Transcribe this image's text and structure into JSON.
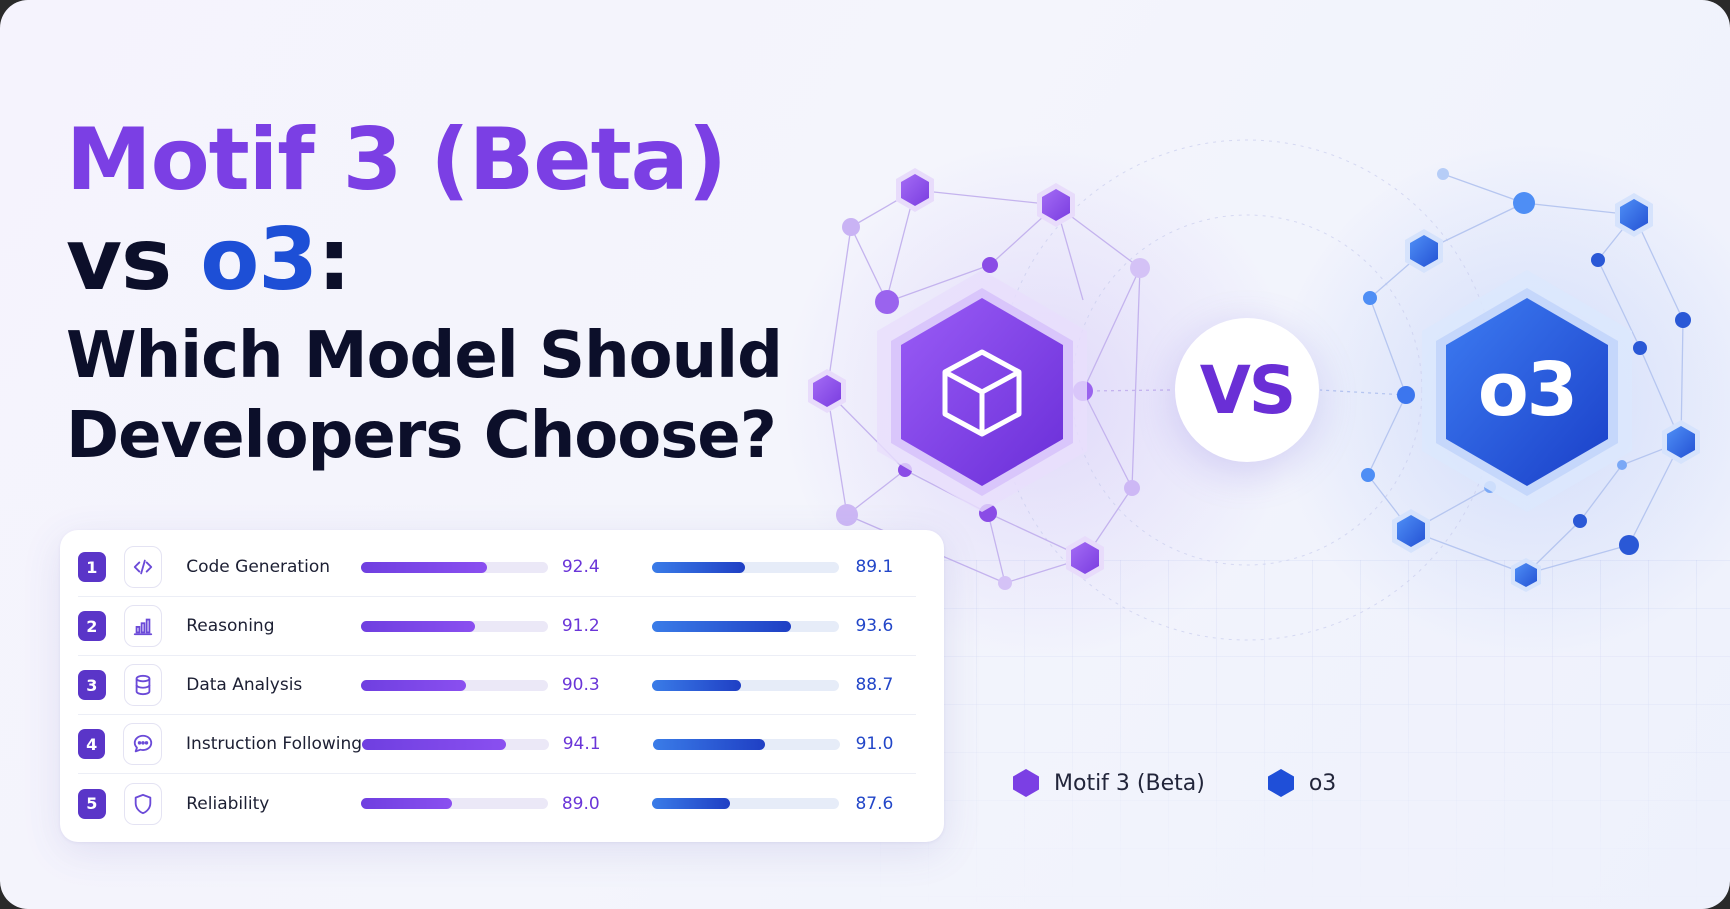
{
  "headline": {
    "line1": "Motif 3 (Beta)",
    "line2_prefix": "vs ",
    "line2_model": "o3",
    "line2_suffix": ":",
    "line3": "Which Model Should",
    "line4": "Developers Choose?"
  },
  "emblems": {
    "vs_label": "VS",
    "right_label": "o3",
    "left_icon": "cube-icon"
  },
  "scores": {
    "max": 100,
    "rows": [
      {
        "rank": "1",
        "icon": "code-icon",
        "label": "Code Generation",
        "motif": 92.4,
        "motif_text": "92.4",
        "o3": 89.1,
        "o3_text": "89.1"
      },
      {
        "rank": "2",
        "icon": "bar-chart-icon",
        "label": "Reasoning",
        "motif": 91.2,
        "motif_text": "91.2",
        "o3": 93.6,
        "o3_text": "93.6"
      },
      {
        "rank": "3",
        "icon": "database-icon",
        "label": "Data Analysis",
        "motif": 90.3,
        "motif_text": "90.3",
        "o3": 88.7,
        "o3_text": "88.7"
      },
      {
        "rank": "4",
        "icon": "chat-bubble-icon",
        "label": "Instruction Following",
        "motif": 94.1,
        "motif_text": "94.1",
        "o3": 91.0,
        "o3_text": "91.0"
      },
      {
        "rank": "5",
        "icon": "shield-icon",
        "label": "Reliability",
        "motif": 89.0,
        "motif_text": "89.0",
        "o3": 87.6,
        "o3_text": "87.6"
      }
    ]
  },
  "legend": {
    "motif": "Motif 3 (Beta)",
    "o3": "o3"
  },
  "colors": {
    "motif": "#7b3fe4",
    "o3": "#1f4fd8",
    "title_dark": "#0c0f2a"
  }
}
